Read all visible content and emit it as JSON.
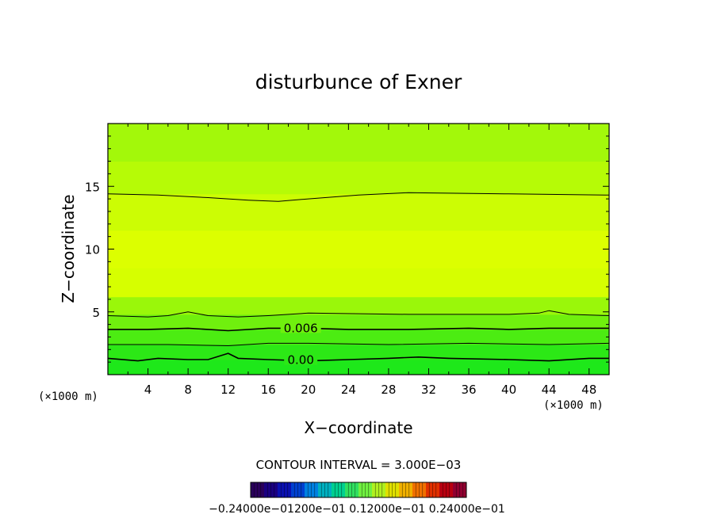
{
  "chart_data": {
    "type": "heatmap",
    "title": "disturbunce of Exner",
    "xlabel": "X−coordinate",
    "ylabel": "Z−coordinate",
    "x_unit_left": "(×1000 m)",
    "x_unit_right": "(×1000 m)",
    "xlim": [
      0,
      50
    ],
    "ylim": [
      0,
      20
    ],
    "x_ticks": [
      4,
      8,
      12,
      16,
      20,
      24,
      28,
      32,
      36,
      40,
      44,
      48
    ],
    "y_ticks": [
      5,
      10,
      15
    ],
    "color_bands": [
      {
        "z_bottom": 0.0,
        "color": "#1ee81a"
      },
      {
        "z_bottom": 1.2,
        "color": "#2ce816"
      },
      {
        "z_bottom": 2.4,
        "color": "#4cec12"
      },
      {
        "z_bottom": 3.6,
        "color": "#70f00e"
      },
      {
        "z_bottom": 4.8,
        "color": "#9af70a"
      },
      {
        "z_bottom": 6.2,
        "color": "#d6ff00"
      },
      {
        "z_bottom": 8.5,
        "color": "#dcff00"
      },
      {
        "z_bottom": 11.5,
        "color": "#ccfd04"
      },
      {
        "z_bottom": 14.4,
        "color": "#b6fb06"
      },
      {
        "z_bottom": 17.0,
        "color": "#a3f80a"
      }
    ],
    "contours": [
      {
        "label": "",
        "width": 1.0,
        "points": [
          [
            0,
            14.4
          ],
          [
            5,
            14.3
          ],
          [
            10,
            14.1
          ],
          [
            14,
            13.9
          ],
          [
            17,
            13.8
          ],
          [
            20,
            14.0
          ],
          [
            25,
            14.3
          ],
          [
            30,
            14.5
          ],
          [
            40,
            14.4
          ],
          [
            50,
            14.3
          ]
        ]
      },
      {
        "label": "",
        "width": 1.0,
        "points": [
          [
            0,
            4.7
          ],
          [
            4,
            4.6
          ],
          [
            6,
            4.7
          ],
          [
            8,
            5.0
          ],
          [
            10,
            4.7
          ],
          [
            13,
            4.6
          ],
          [
            16,
            4.7
          ],
          [
            20,
            4.9
          ],
          [
            30,
            4.8
          ],
          [
            40,
            4.8
          ],
          [
            43,
            4.9
          ],
          [
            44,
            5.1
          ],
          [
            46,
            4.8
          ],
          [
            50,
            4.7
          ]
        ]
      },
      {
        "label": "0.006",
        "label_x": 17.5,
        "width": 1.6,
        "points": [
          [
            0,
            3.6
          ],
          [
            4,
            3.6
          ],
          [
            8,
            3.7
          ],
          [
            12,
            3.5
          ],
          [
            16,
            3.7
          ],
          [
            20,
            3.7
          ],
          [
            24,
            3.6
          ],
          [
            30,
            3.6
          ],
          [
            36,
            3.7
          ],
          [
            40,
            3.6
          ],
          [
            44,
            3.7
          ],
          [
            50,
            3.7
          ]
        ]
      },
      {
        "label": "",
        "width": 1.0,
        "points": [
          [
            0,
            2.4
          ],
          [
            6,
            2.4
          ],
          [
            12,
            2.3
          ],
          [
            16,
            2.5
          ],
          [
            20,
            2.5
          ],
          [
            28,
            2.4
          ],
          [
            36,
            2.5
          ],
          [
            44,
            2.4
          ],
          [
            50,
            2.5
          ]
        ]
      },
      {
        "label": "0.00",
        "label_x": 17.5,
        "width": 1.6,
        "points": [
          [
            0,
            1.3
          ],
          [
            3,
            1.1
          ],
          [
            5,
            1.3
          ],
          [
            8,
            1.2
          ],
          [
            10,
            1.2
          ],
          [
            12,
            1.7
          ],
          [
            13,
            1.3
          ],
          [
            16,
            1.2
          ],
          [
            20,
            1.1
          ],
          [
            24,
            1.2
          ],
          [
            28,
            1.3
          ],
          [
            31,
            1.4
          ],
          [
            34,
            1.3
          ],
          [
            40,
            1.2
          ],
          [
            44,
            1.1
          ],
          [
            48,
            1.3
          ],
          [
            50,
            1.3
          ]
        ]
      }
    ]
  },
  "contour_interval": "CONTOUR INTERVAL = 3.000E−03",
  "colorbar": {
    "colors": [
      "#2a005a",
      "#1a0080",
      "#0a10b0",
      "#0040d0",
      "#0080e0",
      "#00b0c0",
      "#00d090",
      "#30e060",
      "#70f040",
      "#b0f020",
      "#e0e000",
      "#f0b000",
      "#f07000",
      "#e03000",
      "#b80010",
      "#900030"
    ],
    "labels_text": "−0.24000e−01200e−01 0.12000e−01 0.24000e−01"
  }
}
